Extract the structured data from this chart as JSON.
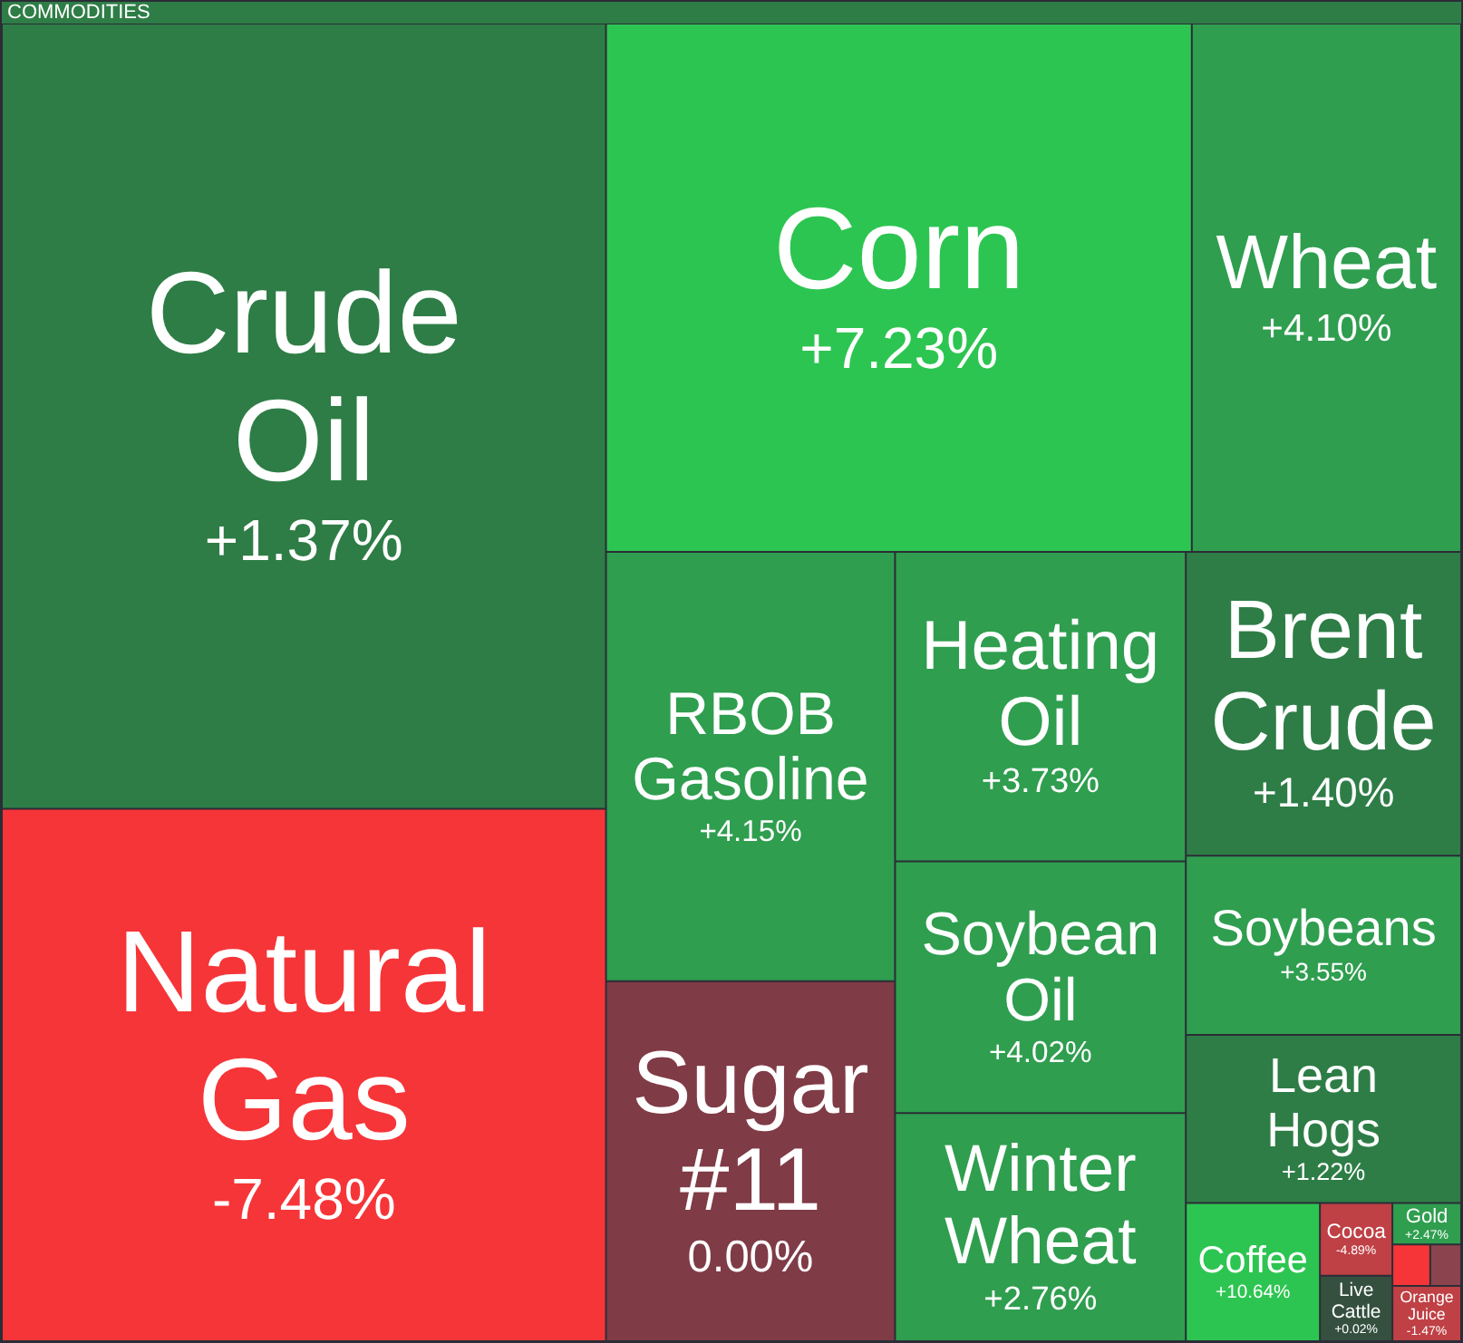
{
  "chart_data": {
    "type": "other",
    "title": "COMMODITIES",
    "categories": [
      "Crude Oil",
      "Natural Gas",
      "Corn",
      "Wheat",
      "RBOB Gasoline",
      "Sugar #11",
      "Heating Oil",
      "Soybean Oil",
      "Winter Wheat",
      "Brent Crude",
      "Soybeans",
      "Lean Hogs",
      "Coffee",
      "Cocoa",
      "Live Cattle",
      "Gold",
      null,
      null,
      "Orange Juice"
    ],
    "values": [
      1.37,
      -7.48,
      7.23,
      4.1,
      4.15,
      0.0,
      3.73,
      4.02,
      2.76,
      1.4,
      3.55,
      1.22,
      10.64,
      -4.89,
      0.02,
      2.47,
      null,
      null,
      -1.47
    ],
    "value_labels": [
      "+1.37%",
      "-7.48%",
      "+7.23%",
      "+4.10%",
      "+4.15%",
      "0.00%",
      "+3.73%",
      "+4.02%",
      "+2.76%",
      "+1.40%",
      "+3.55%",
      "+1.22%",
      "+10.64%",
      "-4.89%",
      "+0.02%",
      "+2.47%",
      null,
      null,
      "-1.47%"
    ],
    "colors": [
      null,
      null,
      null,
      null,
      null,
      null,
      null,
      null,
      null,
      null,
      null,
      null,
      null,
      null,
      null,
      null,
      "#f63538",
      "#8b444e",
      null
    ]
  }
}
